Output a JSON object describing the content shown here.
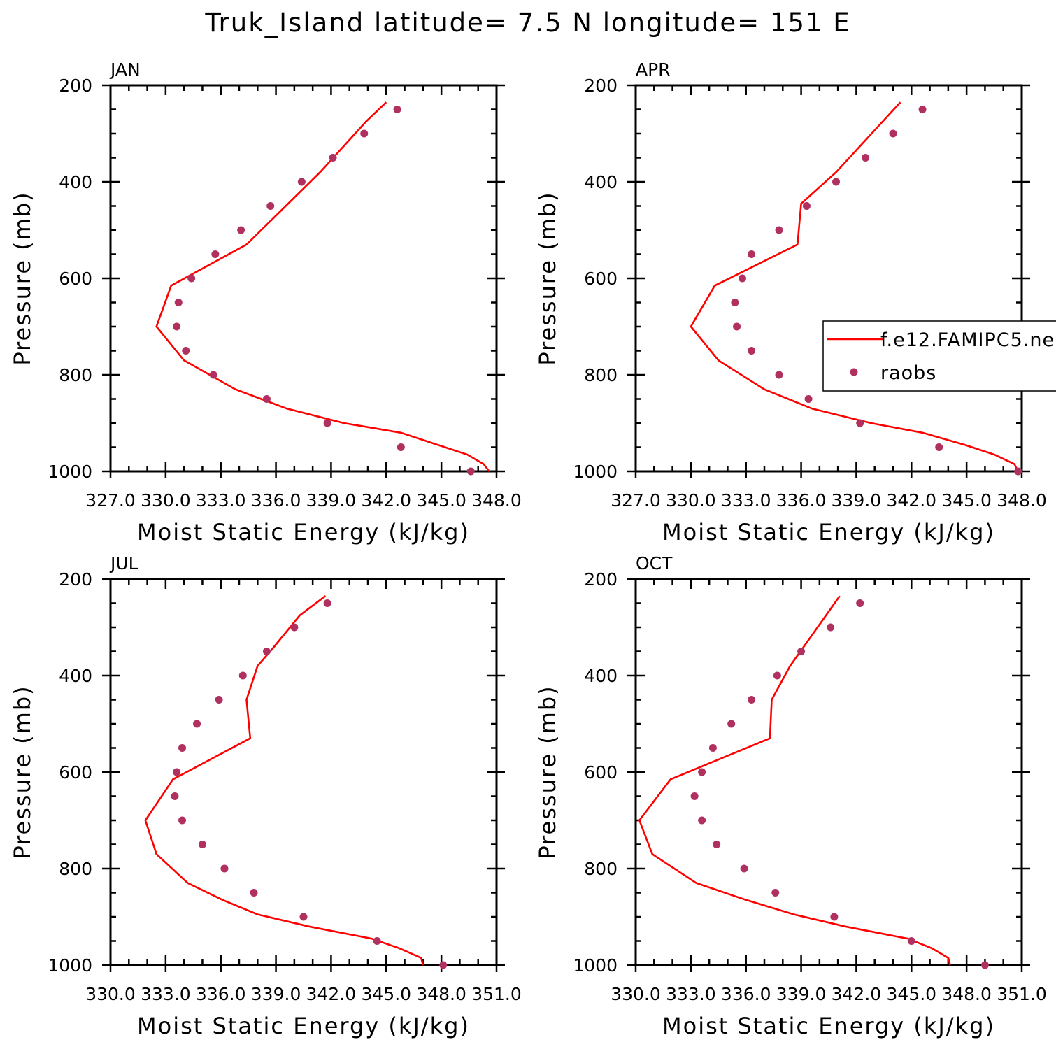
{
  "title": "Truk_Island  latitude= 7.5 N longitude= 151 E",
  "colors": {
    "model": "#ff0000",
    "obs": "#b03060",
    "axis": "#000000"
  },
  "legend": {
    "model_label": "f.e12.FAMIPC5.ne",
    "obs_label": "raobs"
  },
  "chart_data": [
    {
      "type": "line",
      "panel": "JAN",
      "xlabel": "Moist Static Energy (kJ/kg)",
      "ylabel": "Pressure (mb)",
      "xlim": [
        327,
        348
      ],
      "ylim": [
        200,
        1000
      ],
      "y_inverted": true,
      "x_ticks": [
        327,
        330,
        333,
        336,
        339,
        342,
        345,
        348
      ],
      "x_tick_labels": [
        "327.0",
        "330.0",
        "333.0",
        "336.0",
        "339.0",
        "342.0",
        "345.0",
        "348.0"
      ],
      "y_ticks": [
        200,
        400,
        600,
        800,
        1000
      ],
      "y_tick_labels": [
        "200",
        "400",
        "600",
        "800",
        "1000"
      ],
      "series": [
        {
          "name": "f.e12.FAMIPC5.ne",
          "kind": "line",
          "x": [
            342.0,
            340.9,
            338.4,
            334.4,
            330.3,
            329.5,
            331.0,
            333.8,
            336.6,
            339.7,
            342.8,
            344.8,
            346.4,
            347.3,
            347.6
          ],
          "y": [
            235,
            275,
            380,
            530,
            615,
            700,
            770,
            830,
            870,
            900,
            920,
            945,
            965,
            985,
            1000
          ]
        },
        {
          "name": "raobs",
          "kind": "scatter",
          "x": [
            342.6,
            340.8,
            339.1,
            337.4,
            335.7,
            334.1,
            332.7,
            331.4,
            330.7,
            330.6,
            331.1,
            332.6,
            335.5,
            338.8,
            342.8,
            346.6
          ],
          "y": [
            250,
            300,
            350,
            400,
            450,
            500,
            550,
            600,
            650,
            700,
            750,
            800,
            850,
            900,
            950,
            1000
          ]
        }
      ]
    },
    {
      "type": "line",
      "panel": "APR",
      "xlabel": "Moist Static Energy (kJ/kg)",
      "ylabel": "Pressure (mb)",
      "xlim": [
        327,
        348
      ],
      "ylim": [
        200,
        1000
      ],
      "y_inverted": true,
      "x_ticks": [
        327,
        330,
        333,
        336,
        339,
        342,
        345,
        348
      ],
      "x_tick_labels": [
        "327.0",
        "330.0",
        "333.0",
        "336.0",
        "339.0",
        "342.0",
        "345.0",
        "348.0"
      ],
      "y_ticks": [
        200,
        400,
        600,
        800,
        1000
      ],
      "y_tick_labels": [
        "200",
        "400",
        "600",
        "800",
        "1000"
      ],
      "series": [
        {
          "name": "f.e12.FAMIPC5.ne",
          "kind": "line",
          "x": [
            341.4,
            337.9,
            336.0,
            335.8,
            331.3,
            330.0,
            331.5,
            334.0,
            336.6,
            339.8,
            342.6,
            344.9,
            346.5,
            347.6,
            347.8
          ],
          "y": [
            235,
            380,
            445,
            530,
            615,
            700,
            770,
            830,
            870,
            900,
            920,
            945,
            965,
            985,
            1000
          ]
        },
        {
          "name": "raobs",
          "kind": "scatter",
          "x": [
            342.6,
            341.0,
            339.5,
            337.9,
            336.3,
            334.8,
            333.3,
            332.8,
            332.4,
            332.5,
            333.3,
            334.8,
            336.4,
            339.2,
            343.5,
            347.8
          ],
          "y": [
            250,
            300,
            350,
            400,
            450,
            500,
            550,
            600,
            650,
            700,
            750,
            800,
            850,
            900,
            950,
            1000
          ]
        }
      ]
    },
    {
      "type": "line",
      "panel": "JUL",
      "xlabel": "Moist Static Energy (kJ/kg)",
      "ylabel": "Pressure (mb)",
      "xlim": [
        330,
        351
      ],
      "ylim": [
        200,
        1000
      ],
      "y_inverted": true,
      "x_ticks": [
        330,
        333,
        336,
        339,
        342,
        345,
        348,
        351
      ],
      "x_tick_labels": [
        "330.0",
        "333.0",
        "336.0",
        "339.0",
        "342.0",
        "345.0",
        "348.0",
        "351.0"
      ],
      "y_ticks": [
        200,
        400,
        600,
        800,
        1000
      ],
      "y_tick_labels": [
        "200",
        "400",
        "600",
        "800",
        "1000"
      ],
      "series": [
        {
          "name": "f.e12.FAMIPC5.ne",
          "kind": "line",
          "x": [
            341.7,
            340.3,
            338.8,
            338.0,
            337.4,
            337.6,
            333.4,
            331.9,
            332.5,
            334.2,
            336.1,
            338.0,
            340.8,
            344.2,
            345.7,
            346.9,
            347.0
          ],
          "y": [
            235,
            275,
            345,
            380,
            450,
            530,
            615,
            700,
            770,
            830,
            865,
            895,
            920,
            945,
            965,
            985,
            1000
          ]
        },
        {
          "name": "raobs",
          "kind": "scatter",
          "x": [
            341.8,
            340.0,
            338.5,
            337.2,
            335.9,
            334.7,
            333.9,
            333.6,
            333.5,
            333.9,
            335.0,
            336.2,
            337.8,
            340.5,
            344.5,
            348.1
          ],
          "y": [
            250,
            300,
            350,
            400,
            450,
            500,
            550,
            600,
            650,
            700,
            750,
            800,
            850,
            900,
            950,
            1000
          ]
        }
      ]
    },
    {
      "type": "line",
      "panel": "OCT",
      "xlabel": "Moist Static Energy (kJ/kg)",
      "ylabel": "Pressure (mb)",
      "xlim": [
        330,
        351
      ],
      "ylim": [
        200,
        1000
      ],
      "y_inverted": true,
      "x_ticks": [
        330,
        333,
        336,
        339,
        342,
        345,
        348,
        351
      ],
      "x_tick_labels": [
        "330.0",
        "333.0",
        "336.0",
        "339.0",
        "342.0",
        "345.0",
        "348.0",
        "351.0"
      ],
      "y_ticks": [
        200,
        400,
        600,
        800,
        1000
      ],
      "y_tick_labels": [
        "200",
        "400",
        "600",
        "800",
        "1000"
      ],
      "series": [
        {
          "name": "f.e12.FAMIPC5.ne",
          "kind": "line",
          "x": [
            341.1,
            338.4,
            337.4,
            337.3,
            331.9,
            330.2,
            330.9,
            333.3,
            336.0,
            338.6,
            341.4,
            344.8,
            346.1,
            347.0,
            347.1
          ],
          "y": [
            235,
            380,
            450,
            530,
            615,
            700,
            770,
            830,
            865,
            895,
            920,
            945,
            965,
            985,
            1000
          ]
        },
        {
          "name": "raobs",
          "kind": "scatter",
          "x": [
            342.2,
            340.6,
            339.0,
            337.7,
            336.3,
            335.2,
            334.2,
            333.6,
            333.2,
            333.6,
            334.4,
            335.9,
            337.6,
            340.8,
            345.0,
            349.0
          ],
          "y": [
            250,
            300,
            350,
            400,
            450,
            500,
            550,
            600,
            650,
            700,
            750,
            800,
            850,
            900,
            950,
            1000
          ]
        }
      ]
    }
  ]
}
